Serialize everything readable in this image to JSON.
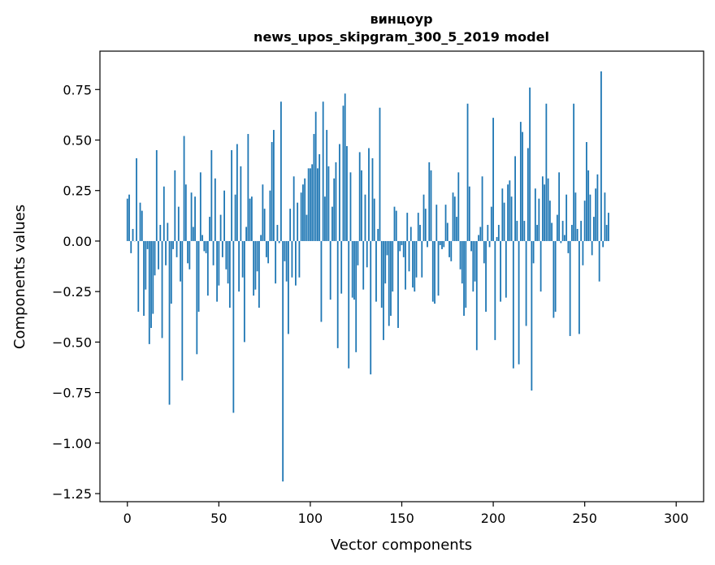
{
  "chart_data": {
    "type": "bar",
    "title_line1": "винцоур",
    "title_line2": "news_upos_skipgram_300_5_2019 model",
    "xlabel": "Vector components",
    "ylabel": "Components values",
    "xlim": [
      -15,
      315
    ],
    "ylim": [
      -1.29,
      0.94
    ],
    "xticks": [
      0,
      50,
      100,
      150,
      200,
      250,
      300
    ],
    "xtick_labels": [
      "0",
      "50",
      "100",
      "150",
      "200",
      "250",
      "300"
    ],
    "yticks": [
      0.75,
      0.5,
      0.25,
      0.0,
      -0.25,
      -0.5,
      -0.75,
      -1.0,
      -1.25
    ],
    "ytick_labels": [
      "0.75",
      "0.50",
      "0.25",
      "0.00",
      "−0.25",
      "−0.50",
      "−0.75",
      "−1.00",
      "−1.25"
    ],
    "bar_color": "#1f77b4",
    "x_start": 0,
    "values": [
      0.21,
      0.23,
      -0.06,
      0.06,
      0.0,
      0.41,
      -0.35,
      0.19,
      0.15,
      -0.37,
      -0.24,
      -0.04,
      -0.51,
      -0.43,
      -0.36,
      -0.17,
      0.45,
      -0.14,
      0.08,
      -0.48,
      0.27,
      -0.12,
      0.09,
      -0.81,
      -0.31,
      -0.04,
      0.35,
      -0.08,
      0.17,
      -0.2,
      -0.69,
      0.52,
      0.28,
      -0.11,
      -0.14,
      0.24,
      0.07,
      0.22,
      -0.56,
      -0.35,
      0.34,
      0.03,
      -0.05,
      -0.06,
      -0.27,
      0.12,
      0.45,
      -0.12,
      0.31,
      -0.3,
      -0.22,
      0.13,
      -0.08,
      0.25,
      -0.14,
      -0.21,
      -0.33,
      0.45,
      -0.85,
      0.23,
      0.48,
      -0.25,
      0.37,
      -0.18,
      -0.5,
      0.07,
      0.53,
      0.21,
      0.22,
      -0.27,
      -0.24,
      -0.15,
      -0.33,
      0.03,
      0.28,
      0.16,
      -0.08,
      -0.11,
      0.25,
      0.49,
      0.55,
      -0.21,
      0.08,
      -0.01,
      0.69,
      -1.19,
      -0.1,
      -0.2,
      -0.46,
      0.16,
      -0.18,
      0.32,
      -0.22,
      0.19,
      -0.18,
      0.24,
      0.28,
      0.31,
      0.13,
      0.36,
      0.36,
      0.38,
      0.53,
      0.64,
      0.36,
      0.43,
      -0.4,
      0.69,
      0.22,
      0.55,
      0.37,
      -0.29,
      0.17,
      0.31,
      0.39,
      -0.53,
      0.48,
      -0.26,
      0.67,
      0.73,
      0.47,
      -0.63,
      0.34,
      -0.28,
      -0.29,
      -0.55,
      -0.12,
      0.44,
      0.35,
      -0.24,
      0.23,
      -0.13,
      0.46,
      -0.66,
      0.41,
      0.21,
      -0.3,
      0.06,
      0.66,
      -0.33,
      -0.49,
      -0.21,
      -0.07,
      -0.42,
      -0.37,
      -0.25,
      0.17,
      0.15,
      -0.43,
      -0.05,
      -0.02,
      -0.08,
      -0.24,
      0.14,
      -0.15,
      0.07,
      -0.23,
      -0.25,
      -0.18,
      0.14,
      0.08,
      -0.18,
      0.23,
      0.16,
      -0.03,
      0.39,
      0.35,
      -0.3,
      -0.31,
      0.18,
      -0.27,
      -0.02,
      -0.04,
      -0.03,
      0.18,
      0.09,
      -0.08,
      -0.1,
      0.24,
      0.22,
      0.12,
      0.34,
      -0.14,
      -0.21,
      -0.37,
      -0.33,
      0.68,
      0.27,
      -0.05,
      -0.25,
      -0.2,
      -0.54,
      0.03,
      0.07,
      0.32,
      -0.11,
      -0.35,
      0.08,
      -0.03,
      0.17,
      0.61,
      -0.49,
      0.02,
      0.08,
      -0.3,
      0.26,
      0.19,
      -0.28,
      0.28,
      0.3,
      0.22,
      -0.63,
      0.42,
      0.1,
      -0.61,
      0.59,
      0.54,
      0.1,
      -0.42,
      0.46,
      0.76,
      -0.74,
      -0.11,
      0.26,
      0.08,
      0.21,
      -0.25,
      0.32,
      0.28,
      0.68,
      0.31,
      0.2,
      0.09,
      -0.38,
      -0.35,
      0.13,
      0.34,
      -0.01,
      0.1,
      0.03,
      0.23,
      -0.06,
      -0.47,
      0.08,
      0.68,
      0.24,
      0.06,
      -0.46,
      0.1,
      -0.12,
      0.2,
      0.49,
      0.35,
      0.23,
      -0.07,
      0.12,
      0.26,
      0.33,
      -0.2,
      0.84,
      -0.03,
      0.24,
      0.08,
      0.14
    ]
  }
}
